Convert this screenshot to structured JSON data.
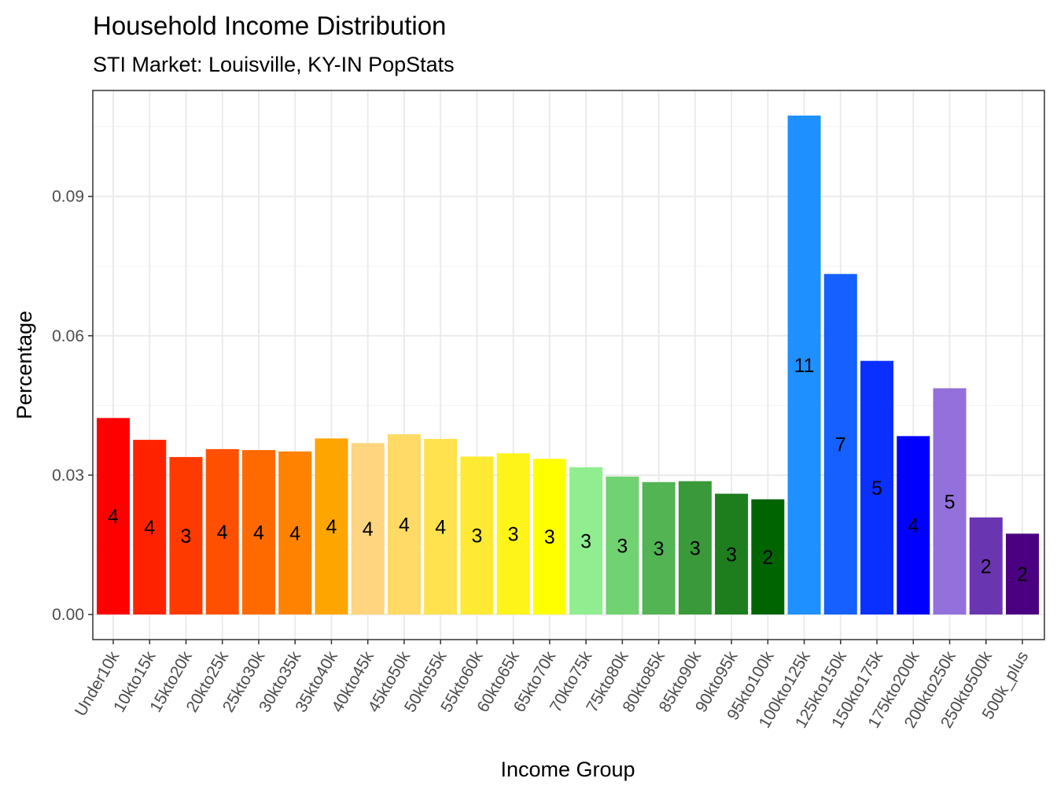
{
  "chart_data": {
    "type": "bar",
    "title": "Household Income Distribution",
    "subtitle": "STI Market: Louisville, KY-IN PopStats",
    "xlabel": "Income Group",
    "ylabel": "Percentage",
    "ylim": [
      -0.0054,
      0.1128
    ],
    "yticks": [
      "0.00",
      "0.03",
      "0.06",
      "0.09"
    ],
    "ytick_values": [
      0,
      0.03,
      0.06,
      0.09
    ],
    "grid": true,
    "legend": "none",
    "categories": [
      "Under10k",
      "10kto15k",
      "15kto20k",
      "20kto25k",
      "25kto30k",
      "30kto35k",
      "35kto40k",
      "40kto45k",
      "45kto50k",
      "50kto55k",
      "55kto60k",
      "60kto65k",
      "65kto70k",
      "70kto75k",
      "75kto80k",
      "80kto85k",
      "85kto90k",
      "90kto95k",
      "95kto100k",
      "100kto125k",
      "125kto150k",
      "150kto175k",
      "175kto200k",
      "200kto250k",
      "250kto500k",
      "500k_plus"
    ],
    "values": [
      0.0423,
      0.0376,
      0.0339,
      0.0356,
      0.0354,
      0.0351,
      0.0379,
      0.0369,
      0.0388,
      0.0378,
      0.034,
      0.0347,
      0.0335,
      0.0317,
      0.0297,
      0.0285,
      0.0287,
      0.026,
      0.0248,
      0.1074,
      0.0733,
      0.0546,
      0.0384,
      0.0487,
      0.0209,
      0.0174
    ],
    "data_labels": [
      "4",
      "4",
      "3",
      "4",
      "4",
      "4",
      "4",
      "4",
      "4",
      "4",
      "3",
      "3",
      "3",
      "3",
      "3",
      "3",
      "3",
      "3",
      "2",
      "11",
      "7",
      "5",
      "4",
      "5",
      "2",
      "2"
    ],
    "colors": [
      "#FF0000",
      "#FF2200",
      "#FF3A00",
      "#FF5000",
      "#FF6A00",
      "#FF8200",
      "#FFA500",
      "#FFD580",
      "#FFDA66",
      "#FFE24D",
      "#FFEA33",
      "#FFF41A",
      "#FFFF00",
      "#90EE90",
      "#70D270",
      "#52B452",
      "#3A9A3A",
      "#1E7E1E",
      "#006400",
      "#1E90FF",
      "#1560FF",
      "#0A30FF",
      "#0000FF",
      "#9370DB",
      "#6A35B0",
      "#4B0082"
    ]
  }
}
